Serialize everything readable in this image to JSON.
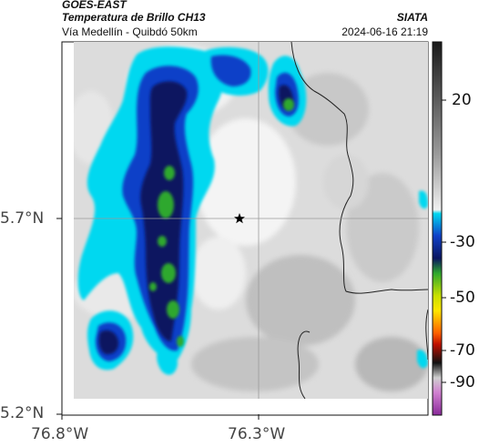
{
  "header": {
    "satellite": "GOES-EAST",
    "product": "Temperatura de Brillo CH13",
    "region": "Vía Medellín - Quibdó 50km",
    "agency": "SIATA",
    "datetime": "2024-06-16 21:19"
  },
  "axes": {
    "lat_ticks": [
      "5.7°N",
      "5.2°N"
    ],
    "lon_ticks": [
      "76.8°W",
      "76.3°W"
    ]
  },
  "colorbar": {
    "ticks": [
      "20",
      "-30",
      "-50",
      "-70",
      "-90"
    ],
    "colors": {
      "gray_warm": "#2a2a2a",
      "gray_cold": "#f2f2f2",
      "cyan": "#00d8f0",
      "blue": "#1040c8",
      "navy": "#0a1560",
      "green": "#2ea82e",
      "yellow": "#ffe600",
      "red": "#e02000",
      "black": "#111111",
      "magenta": "#b040b0"
    }
  },
  "marker": {
    "icon": "star-icon"
  }
}
